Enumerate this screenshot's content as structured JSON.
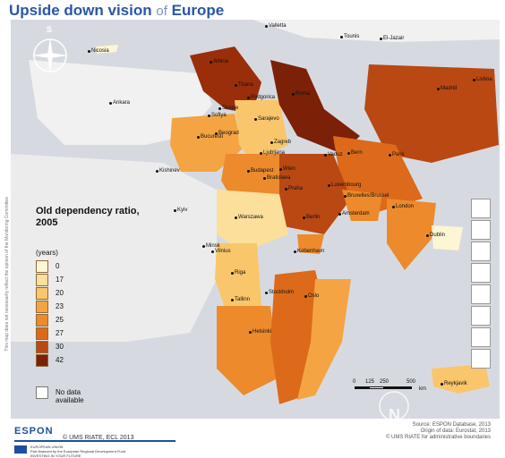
{
  "title": {
    "main": "Upside down vision",
    "of": "of",
    "region": "Europe"
  },
  "side_note": "This map does not necessarily reflect the opinion of the Monitoring Committee",
  "legend": {
    "title": "Old dependency ratio, 2005",
    "unit": "(years)",
    "classes": [
      {
        "value": "0",
        "color": "#fdf6d4"
      },
      {
        "value": "17",
        "color": "#fcdf9a"
      },
      {
        "value": "20",
        "color": "#f9c66b"
      },
      {
        "value": "23",
        "color": "#f4a443"
      },
      {
        "value": "25",
        "color": "#ec8a2c"
      },
      {
        "value": "27",
        "color": "#dc6a1a"
      },
      {
        "value": "30",
        "color": "#b94812"
      },
      {
        "value": "42",
        "color": "#7d2008"
      }
    ],
    "nodata": "No data available"
  },
  "compass": {
    "small_letter": "S",
    "big_letter": "N"
  },
  "scale": {
    "ticks": [
      "0",
      "125",
      "250",
      "500"
    ],
    "unit": "km"
  },
  "cities": [
    {
      "name": "Valletta"
    },
    {
      "name": "Tounis"
    },
    {
      "name": "El-Jazair"
    },
    {
      "name": "Nicosia"
    },
    {
      "name": "Athina"
    },
    {
      "name": "Ankara"
    },
    {
      "name": "Tirana"
    },
    {
      "name": "Podgorica"
    },
    {
      "name": "Roma"
    },
    {
      "name": "Skopje"
    },
    {
      "name": "Sofiya"
    },
    {
      "name": "Sarajevo"
    },
    {
      "name": "Madrid"
    },
    {
      "name": "Lisboa"
    },
    {
      "name": "Beograd"
    },
    {
      "name": "Bucuresti"
    },
    {
      "name": "Zagreb"
    },
    {
      "name": "Ljubljana"
    },
    {
      "name": "Vaduz"
    },
    {
      "name": "Bern"
    },
    {
      "name": "Kishinev"
    },
    {
      "name": "Budapest"
    },
    {
      "name": "Wien"
    },
    {
      "name": "Bratislava"
    },
    {
      "name": "Paris"
    },
    {
      "name": "Luxembourg"
    },
    {
      "name": "Praha"
    },
    {
      "name": "Bruxelles/Brussel"
    },
    {
      "name": "Kyiv"
    },
    {
      "name": "Warszawa"
    },
    {
      "name": "Berlin"
    },
    {
      "name": "Amsterdam"
    },
    {
      "name": "London"
    },
    {
      "name": "Minsk"
    },
    {
      "name": "Vilnius"
    },
    {
      "name": "Kobenhavn"
    },
    {
      "name": "Dublin"
    },
    {
      "name": "Riga"
    },
    {
      "name": "Tallinn"
    },
    {
      "name": "Stockholm"
    },
    {
      "name": "Oslo"
    },
    {
      "name": "Helsinki"
    },
    {
      "name": "Reykjavik"
    }
  ],
  "sources": [
    "Source: ESPON Database, 2013",
    "Origin of data: Eurostat, 2013",
    "© UMS RIATE for administrative boundaries"
  ],
  "copyright": "© UMS RIATE, ECL 2013",
  "espon": "ESPON",
  "eu_text": [
    "EUROPEAN UNION",
    "Part-financed by the European Regional Development Fund",
    "INVESTING IN YOUR FUTURE"
  ]
}
